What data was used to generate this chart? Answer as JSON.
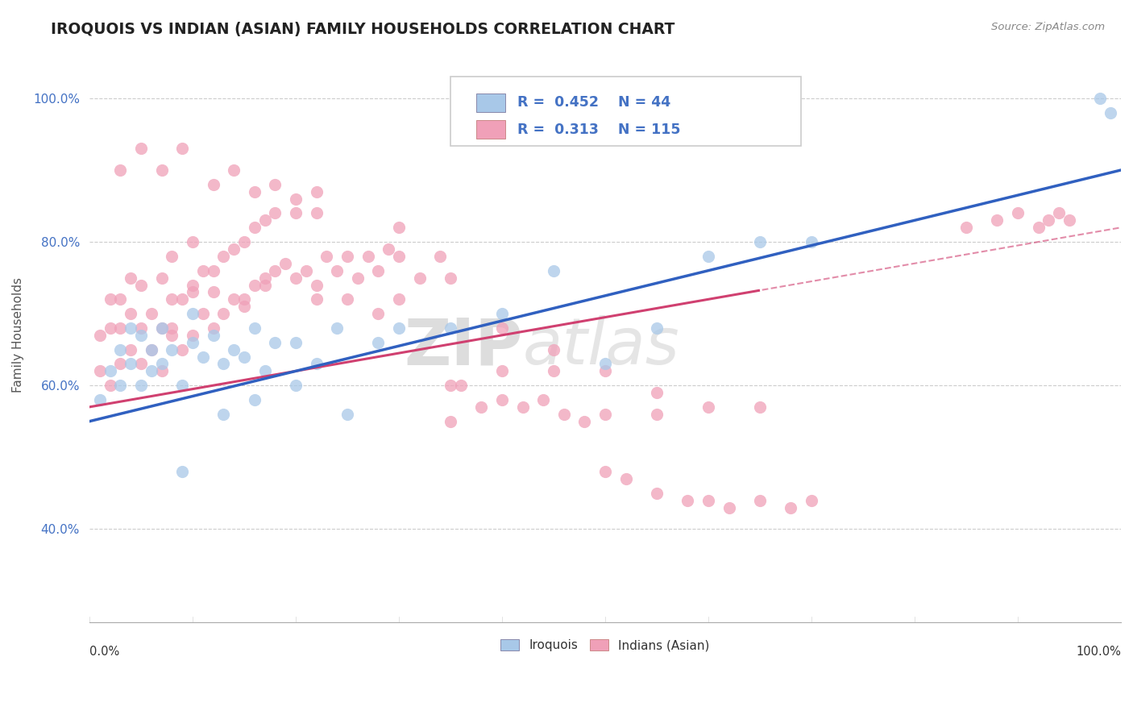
{
  "title": "IROQUOIS VS INDIAN (ASIAN) FAMILY HOUSEHOLDS CORRELATION CHART",
  "source": "Source: ZipAtlas.com",
  "ylabel": "Family Households",
  "blue_R": "0.452",
  "blue_N": "44",
  "pink_R": "0.313",
  "pink_N": "115",
  "blue_color": "#a8c8e8",
  "pink_color": "#f0a0b8",
  "blue_line_color": "#3060c0",
  "pink_line_color": "#d04070",
  "ytick_labels": [
    "40.0%",
    "60.0%",
    "80.0%",
    "100.0%"
  ],
  "ytick_values": [
    0.4,
    0.6,
    0.8,
    1.0
  ],
  "xlim": [
    0.0,
    1.0
  ],
  "ylim": [
    0.27,
    1.07
  ]
}
